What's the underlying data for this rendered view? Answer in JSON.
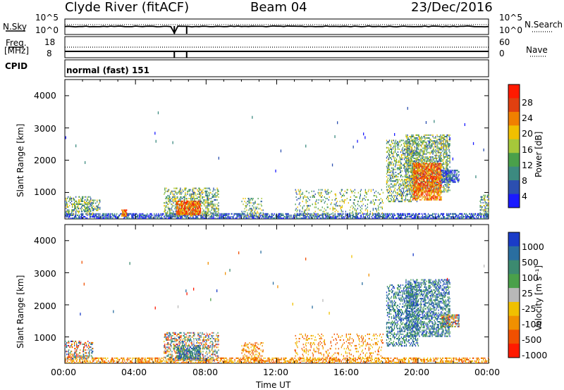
{
  "header": {
    "station": "Clyde River (fitACF)",
    "beam": "Beam 04",
    "date": "23/Dec/2016"
  },
  "top_panels": {
    "nsky_label": "N.Sky",
    "nsky_ticks": [
      "10^5",
      "10^0"
    ],
    "nsearch_label": "N.Search",
    "nsearch_ticks": [
      "10^5",
      "10^0"
    ],
    "freq_label_1": "Freq.",
    "freq_label_2": "[MHz]",
    "freq_ticks": [
      "18",
      "8"
    ],
    "nave_label": "Nave",
    "nave_ticks": [
      "60",
      "0"
    ],
    "cpid_label": "CPID",
    "cpid_value": "normal (fast) 151"
  },
  "chart_data": [
    {
      "type": "heatmap",
      "name": "power",
      "ylabel": "Slant Range [km]",
      "ylim": [
        180,
        4500
      ],
      "yticks": [
        "4000",
        "3000",
        "2000",
        "1000"
      ],
      "xlabel": "",
      "colorbar_label": "Power [dB]",
      "colorbar_ticks": [
        "28",
        "24",
        "20",
        "16",
        "12",
        "8",
        "4"
      ],
      "colorbar_range": [
        0,
        32
      ],
      "colors": [
        "#1a1aff",
        "#2c4fb0",
        "#3c8a80",
        "#4aa04a",
        "#a6c83a",
        "#f0c000",
        "#f08000",
        "#e04010",
        "#ff1a00"
      ],
      "regions": [
        {
          "t": [
            0.0,
            24.0
          ],
          "r": [
            180,
            320
          ],
          "level": "low",
          "density": 0.55
        },
        {
          "t": [
            0.0,
            1.6
          ],
          "r": [
            300,
            850
          ],
          "level": "mid",
          "density": 0.35
        },
        {
          "t": [
            1.2,
            2.0
          ],
          "r": [
            420,
            780
          ],
          "level": "mid",
          "density": 0.4
        },
        {
          "t": [
            3.2,
            3.5
          ],
          "r": [
            250,
            450
          ],
          "level": "high",
          "density": 0.9
        },
        {
          "t": [
            5.6,
            8.7
          ],
          "r": [
            250,
            1150
          ],
          "level": "mid",
          "density": 0.35
        },
        {
          "t": [
            6.3,
            7.7
          ],
          "r": [
            300,
            750
          ],
          "level": "high",
          "density": 0.75
        },
        {
          "t": [
            10.0,
            11.2
          ],
          "r": [
            250,
            800
          ],
          "level": "mid",
          "density": 0.25
        },
        {
          "t": [
            13.0,
            18.0
          ],
          "r": [
            250,
            1100
          ],
          "level": "mid",
          "density": 0.15
        },
        {
          "t": [
            18.2,
            20.0
          ],
          "r": [
            700,
            2600
          ],
          "level": "mid",
          "density": 0.35
        },
        {
          "t": [
            19.3,
            21.8
          ],
          "r": [
            1000,
            2800
          ],
          "level": "mid",
          "density": 0.45
        },
        {
          "t": [
            19.7,
            21.3
          ],
          "r": [
            750,
            1900
          ],
          "level": "high",
          "density": 0.65
        },
        {
          "t": [
            21.3,
            22.3
          ],
          "r": [
            1300,
            1700
          ],
          "level": "low",
          "density": 0.6
        },
        {
          "t": [
            23.5,
            24.0
          ],
          "r": [
            300,
            900
          ],
          "level": "mid",
          "density": 0.4
        }
      ]
    },
    {
      "type": "heatmap",
      "name": "velocity",
      "xlabel": "Time UT",
      "xticks": [
        "00:00",
        "04:00",
        "08:00",
        "12:00",
        "16:00",
        "20:00",
        "00:00"
      ],
      "xlim": [
        0,
        24
      ],
      "ylabel": "Slant Range [km]",
      "ylim": [
        180,
        4500
      ],
      "yticks": [
        "4000",
        "3000",
        "2000",
        "1000"
      ],
      "colorbar_label": "Velocity [m s⁻¹]",
      "colorbar_ticks": [
        "1000",
        "500",
        "100",
        "25",
        "-25",
        "-100",
        "-500",
        "-1000"
      ],
      "colors": [
        "#1a3cc8",
        "#2a6ea0",
        "#3c8a70",
        "#4aa04a",
        "#b8b8b8",
        "#f0c000",
        "#f09000",
        "#f05000",
        "#ff1a00"
      ],
      "regions": [
        {
          "t": [
            0.0,
            24.0
          ],
          "r": [
            180,
            320
          ],
          "level": "neg",
          "density": 0.45
        },
        {
          "t": [
            0.0,
            1.6
          ],
          "r": [
            300,
            850
          ],
          "level": "mix",
          "density": 0.35
        },
        {
          "t": [
            5.6,
            8.7
          ],
          "r": [
            250,
            1150
          ],
          "level": "mix",
          "density": 0.35
        },
        {
          "t": [
            6.3,
            7.7
          ],
          "r": [
            300,
            750
          ],
          "level": "pos",
          "density": 0.5
        },
        {
          "t": [
            10.0,
            11.2
          ],
          "r": [
            250,
            800
          ],
          "level": "neg",
          "density": 0.25
        },
        {
          "t": [
            13.0,
            18.0
          ],
          "r": [
            250,
            1100
          ],
          "level": "neg",
          "density": 0.15
        },
        {
          "t": [
            18.2,
            20.0
          ],
          "r": [
            700,
            2600
          ],
          "level": "pos",
          "density": 0.35
        },
        {
          "t": [
            19.3,
            21.8
          ],
          "r": [
            1000,
            2800
          ],
          "level": "pos",
          "density": 0.45
        },
        {
          "t": [
            21.3,
            22.3
          ],
          "r": [
            1300,
            1700
          ],
          "level": "mix",
          "density": 0.6
        }
      ]
    }
  ]
}
